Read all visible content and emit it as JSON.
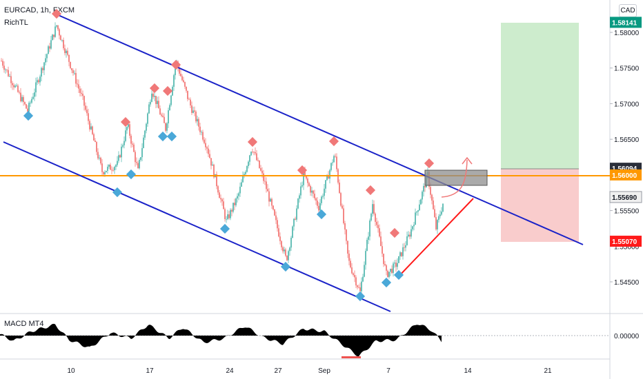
{
  "legend": {
    "symbol": "EURCAD, 1h, FXCM",
    "indicator": "RichTL",
    "macd_label": "MACD MT4"
  },
  "currency_button": "CAD",
  "colors": {
    "up": "#26a69a",
    "down": "#ef5350",
    "channel": "#1a22c8",
    "support_level": "#ff9800",
    "trend_up": "#ff1a1a",
    "target_zone": "#cdeccd",
    "stop_zone": "#f9cccc",
    "high_marker": "#f07878",
    "low_marker": "#4aa8d8"
  },
  "chart_data": {
    "type": "candlestick",
    "symbol": "EURCAD",
    "timeframe": "1h",
    "source": "FXCM",
    "x_tick_labels": [
      "10",
      "17",
      "24",
      "27",
      "Sep",
      "7",
      "14",
      "21"
    ],
    "y_tick_labels": [
      "1.58000",
      "1.57500",
      "1.57000",
      "1.56500",
      "1.56000",
      "1.55500",
      "1.55000",
      "1.54500"
    ],
    "ylim": [
      1.5415,
      1.5835
    ],
    "macd_tick_label": "0.00000",
    "price_labels": [
      {
        "value": "1.58141",
        "kind": "target"
      },
      {
        "value": "1.56094",
        "kind": "entry"
      },
      {
        "value": "1.56000",
        "kind": "level"
      },
      {
        "value": "1.55690",
        "kind": "last"
      },
      {
        "value": "1.55070",
        "kind": "stop"
      }
    ],
    "position": {
      "target": 1.58141,
      "entry": 1.56094,
      "stop": 1.5507
    },
    "horizontal_level": 1.56,
    "last_price": 1.5569
  }
}
